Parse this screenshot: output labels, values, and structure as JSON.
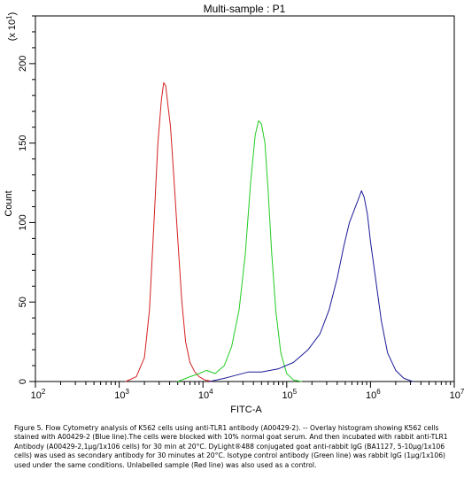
{
  "chart_data": {
    "type": "line",
    "title": "Multi-sample : P1",
    "xlabel": "FITC-A",
    "ylabel": "Count",
    "y_scale_label": "(x 10",
    "y_scale_exp": "1",
    "y_scale_close": ")",
    "x_scale": "log",
    "xlim": [
      100,
      10000000
    ],
    "ylim": [
      0,
      230
    ],
    "x_ticks": [
      {
        "value": 100,
        "base": "10",
        "exp": "2"
      },
      {
        "value": 1000,
        "base": "10",
        "exp": "3"
      },
      {
        "value": 10000,
        "base": "10",
        "exp": "4"
      },
      {
        "value": 100000,
        "base": "10",
        "exp": "5"
      },
      {
        "value": 1000000,
        "base": "10",
        "exp": "6"
      },
      {
        "value": 10000000,
        "base": "10",
        "exp": "7"
      }
    ],
    "y_ticks": [
      0,
      50,
      100,
      150,
      200
    ],
    "grid": false,
    "series": [
      {
        "color": "#d42020",
        "x": [
          1200,
          1600,
          2000,
          2300,
          2600,
          2900,
          3200,
          3400,
          3600,
          3800,
          4100,
          4500,
          5000,
          5600,
          6200,
          7000,
          8000,
          9000,
          10500,
          13000
        ],
        "y": [
          0,
          3,
          15,
          45,
          100,
          150,
          178,
          188,
          186,
          175,
          160,
          128,
          90,
          50,
          25,
          12,
          6,
          3,
          1,
          0
        ]
      },
      {
        "color": "#22cc22",
        "x": [
          5000,
          7000,
          9000,
          11000,
          14000,
          18000,
          22000,
          27000,
          32000,
          37000,
          42000,
          46000,
          50000,
          55000,
          60000,
          66000,
          74000,
          85000,
          100000,
          120000,
          150000
        ],
        "y": [
          0,
          3,
          5,
          7,
          5,
          10,
          22,
          45,
          80,
          125,
          155,
          164,
          162,
          150,
          120,
          82,
          45,
          18,
          5,
          1,
          0
        ]
      },
      {
        "color": "#1a1a99",
        "x": [
          12000,
          18000,
          25000,
          35000,
          50000,
          80000,
          120000,
          180000,
          250000,
          320000,
          400000,
          480000,
          560000,
          640000,
          720000,
          780000,
          840000,
          920000,
          1000000,
          1150000,
          1350000,
          1600000,
          2000000,
          2500000,
          3200000
        ],
        "y": [
          0,
          2,
          4,
          6,
          6,
          8,
          12,
          20,
          30,
          45,
          65,
          85,
          100,
          108,
          115,
          120,
          116,
          105,
          88,
          65,
          38,
          18,
          7,
          2,
          0
        ]
      }
    ]
  },
  "caption": "Figure 5. Flow Cytometry analysis of K562 cells using anti-TLR1 antibody (A00429-2). -- Overlay histogram showing K562 cells stained with A00429-2 (Blue line).The cells were blocked with 10% normal goat serum. And then incubated with rabbit anti-TLR1 Antibody (A00429-2,1μg/1x106 cells) for 30 min at 20°C. DyLight®488 conjugated goat anti-rabbit IgG (BA1127, 5-10μg/1x106 cells) was used as secondary antibody for 30 minutes at 20°C. Isotype control antibody (Green line) was rabbit IgG (1μg/1x106) used under the same conditions. Unlabelled sample (Red line) was also used as a control."
}
